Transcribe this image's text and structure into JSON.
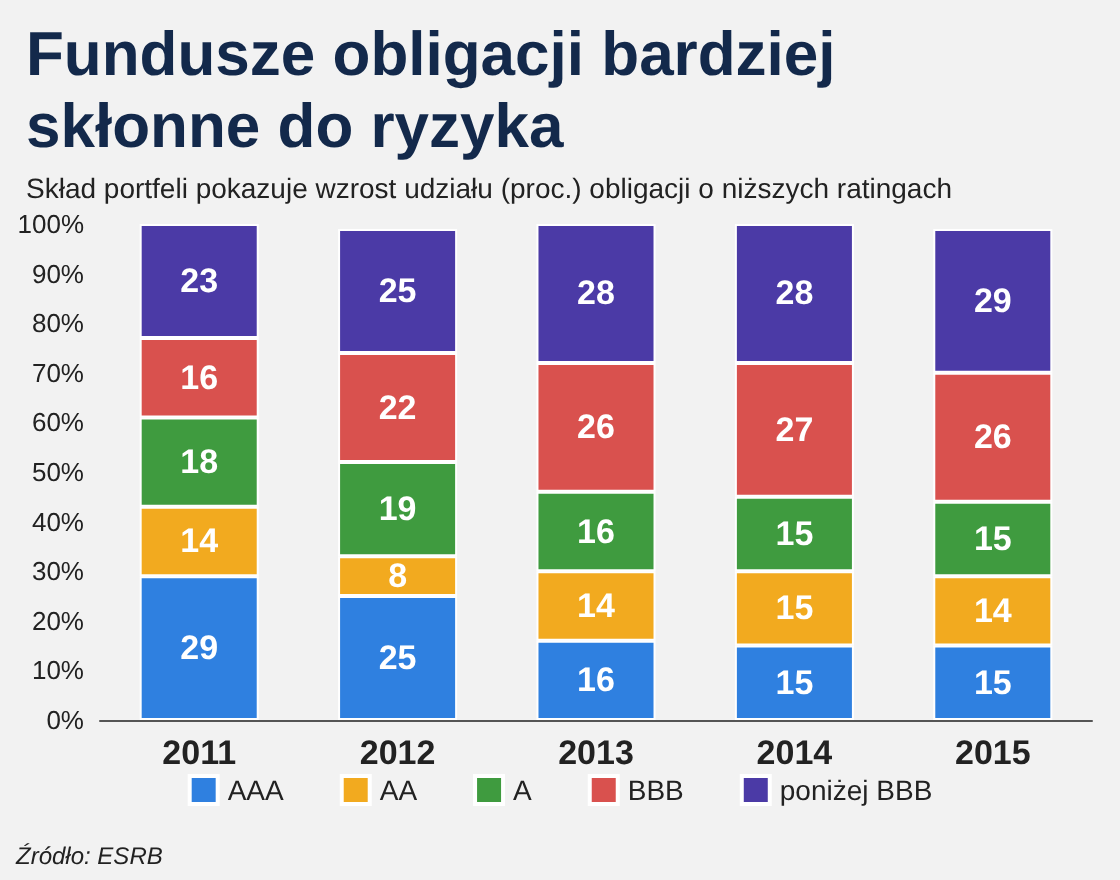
{
  "chart_data": {
    "type": "bar",
    "title": "Fundusze obligacji bardziej skłonne do ryzyka",
    "subtitle": "Skład portfeli pokazuje wzrost udziału (proc.) obligacji o niższych ratingach",
    "annotations": [
      "Źródło: ESRB"
    ],
    "categories": [
      "2011",
      "2012",
      "2013",
      "2014",
      "2015"
    ],
    "stacked": true,
    "data_labels": true,
    "legend": "bottom",
    "ylim": [
      0,
      100
    ],
    "yticks": [
      {
        "value": 0,
        "label": "0%"
      },
      {
        "value": 10,
        "label": "10%"
      },
      {
        "value": 20,
        "label": "20%"
      },
      {
        "value": 30,
        "label": "30%"
      },
      {
        "value": 40,
        "label": "40%"
      },
      {
        "value": 50,
        "label": "50%"
      },
      {
        "value": 60,
        "label": "60%"
      },
      {
        "value": 70,
        "label": "70%"
      },
      {
        "value": 80,
        "label": "80%"
      },
      {
        "value": 90,
        "label": "90%"
      },
      {
        "value": 100,
        "label": "100%"
      }
    ],
    "series": [
      {
        "name": "AAA",
        "color": "#2f80e0",
        "values": [
          29,
          25,
          16,
          15,
          15
        ]
      },
      {
        "name": "AA",
        "color": "#f2aa1f",
        "values": [
          14,
          8,
          14,
          15,
          14
        ]
      },
      {
        "name": "A",
        "color": "#3f9b3f",
        "values": [
          18,
          19,
          16,
          15,
          15
        ]
      },
      {
        "name": "BBB",
        "color": "#d9514e",
        "values": [
          16,
          22,
          26,
          27,
          26
        ]
      },
      {
        "name": "poniżej BBB",
        "color": "#4b3aa6",
        "values": [
          23,
          25,
          28,
          28,
          29
        ]
      }
    ]
  }
}
